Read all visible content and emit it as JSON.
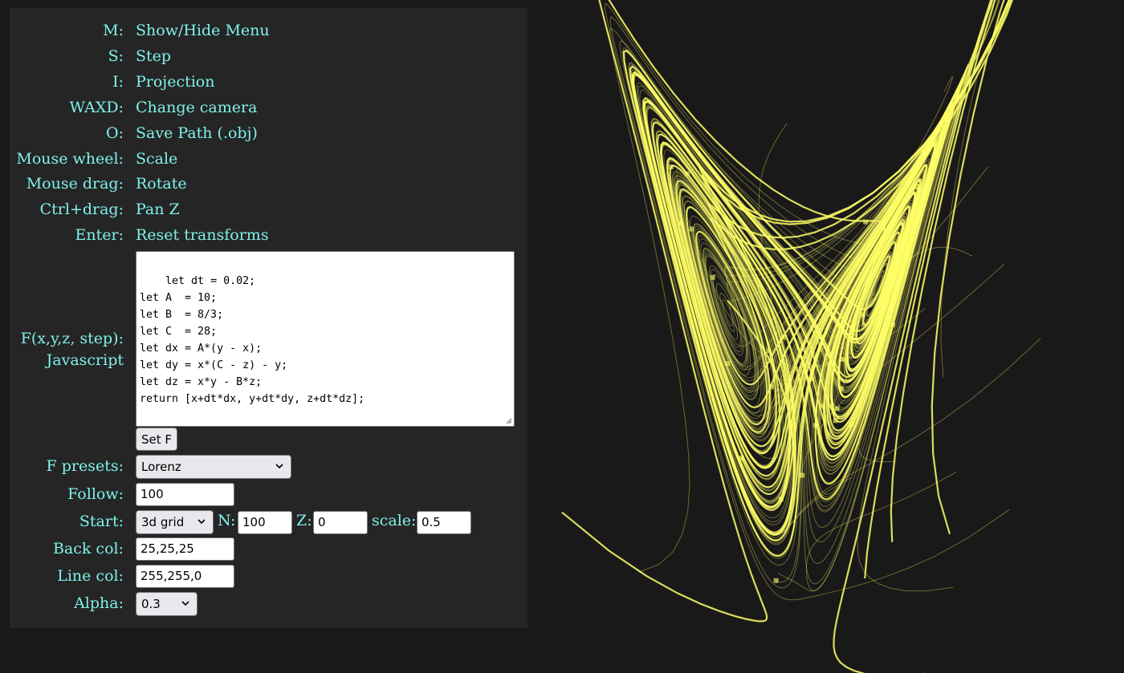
{
  "shortcuts": [
    {
      "key": "M:",
      "action": "Show/Hide Menu"
    },
    {
      "key": "S:",
      "action": "Step"
    },
    {
      "key": "I:",
      "action": "Projection"
    },
    {
      "key": "WAXD:",
      "action": "Change camera"
    },
    {
      "key": "O:",
      "action": "Save Path (.obj)"
    },
    {
      "key": "Mouse wheel:",
      "action": "Scale"
    },
    {
      "key": "Mouse drag:",
      "action": "Rotate"
    },
    {
      "key": "Ctrl+drag:",
      "action": "Pan Z"
    },
    {
      "key": "Enter:",
      "action": "Reset transforms"
    }
  ],
  "function": {
    "label_line1": "F(x,y,z, step):",
    "label_line2": "Javascript",
    "code": "let dt = 0.02;\nlet A  = 10;\nlet B  = 8/3;\nlet C  = 28;\nlet dx = A*(y - x);\nlet dy = x*(C - z) - y;\nlet dz = x*y - B*z;\nreturn [x+dt*dx, y+dt*dy, z+dt*dz];",
    "set_button": "Set F"
  },
  "presets": {
    "label": "F presets:",
    "selected": "Lorenz"
  },
  "follow": {
    "label": "Follow:",
    "value": "100"
  },
  "start": {
    "label": "Start:",
    "mode": "3d grid",
    "n_label": "N:",
    "n_value": "100",
    "z_label": "Z:",
    "z_value": "0",
    "scale_label": "scale:",
    "scale_value": "0.5"
  },
  "back_col": {
    "label": "Back col:",
    "value": "25,25,25"
  },
  "line_col": {
    "label": "Line col:",
    "value": "255,255,0"
  },
  "alpha": {
    "label": "Alpha:",
    "value": "0.3"
  },
  "colors": {
    "background": "#191919",
    "menu_bg": "#252525",
    "label_text": "#7ff1ea",
    "line": "#ffff00"
  },
  "icons": {
    "dropdown": "chevron-down-icon",
    "resize": "resize-grip-icon"
  }
}
